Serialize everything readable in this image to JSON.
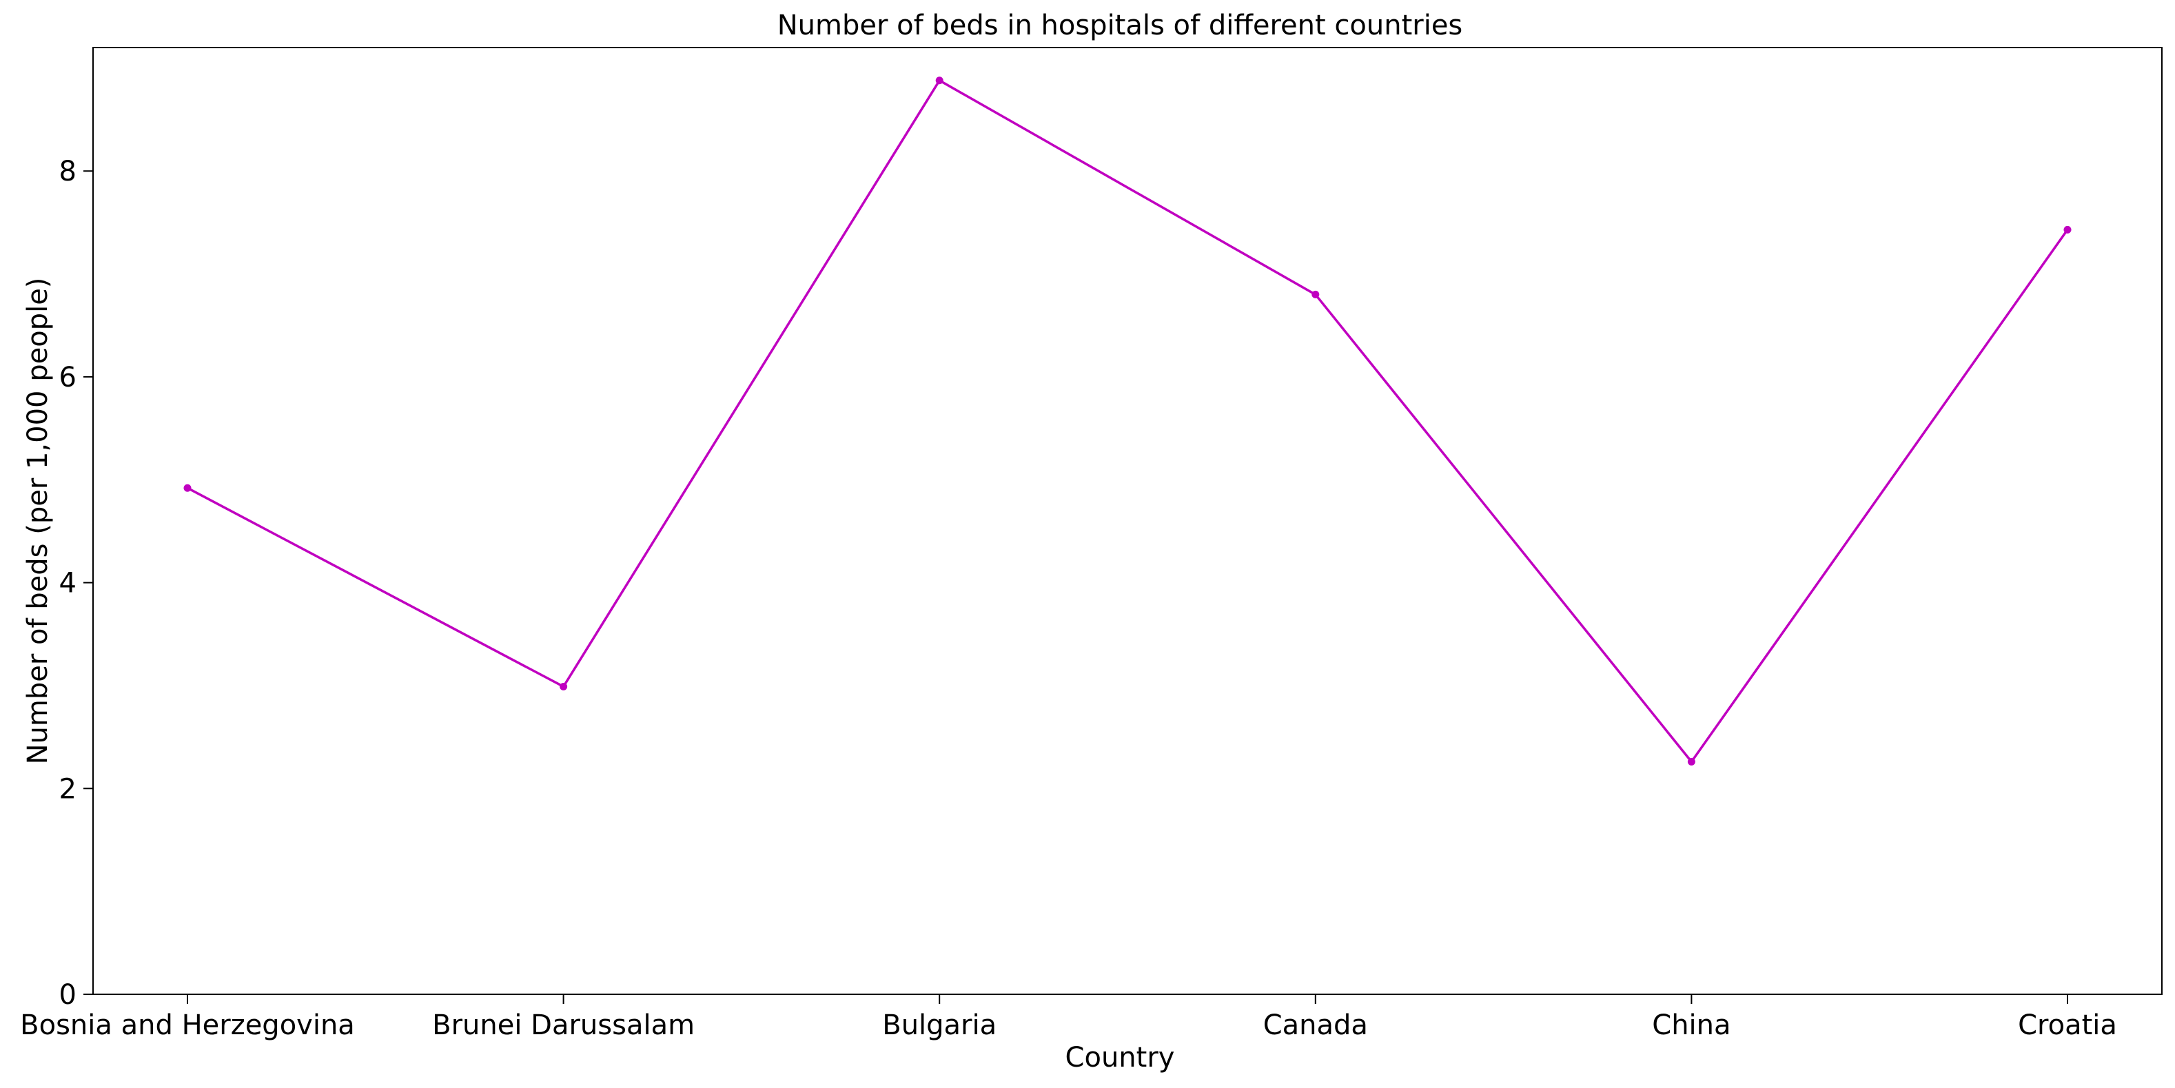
{
  "chart_data": {
    "type": "line",
    "title": "Number of beds in hospitals of different countries",
    "xlabel": "Country",
    "ylabel": "Number of beds (per 1,000 people)",
    "categories": [
      "Bosnia and Herzegovina",
      "Brunei Darussalam",
      "Bulgaria",
      "Canada",
      "China",
      "Croatia"
    ],
    "series": [
      {
        "values": [
          4.92,
          2.99,
          8.88,
          6.8,
          2.26,
          7.43
        ],
        "color": "#c000c0"
      }
    ],
    "ylim": [
      0,
      9.2
    ],
    "yticks": [
      0,
      2,
      4,
      6,
      8
    ],
    "grid": false,
    "legend": "none"
  }
}
